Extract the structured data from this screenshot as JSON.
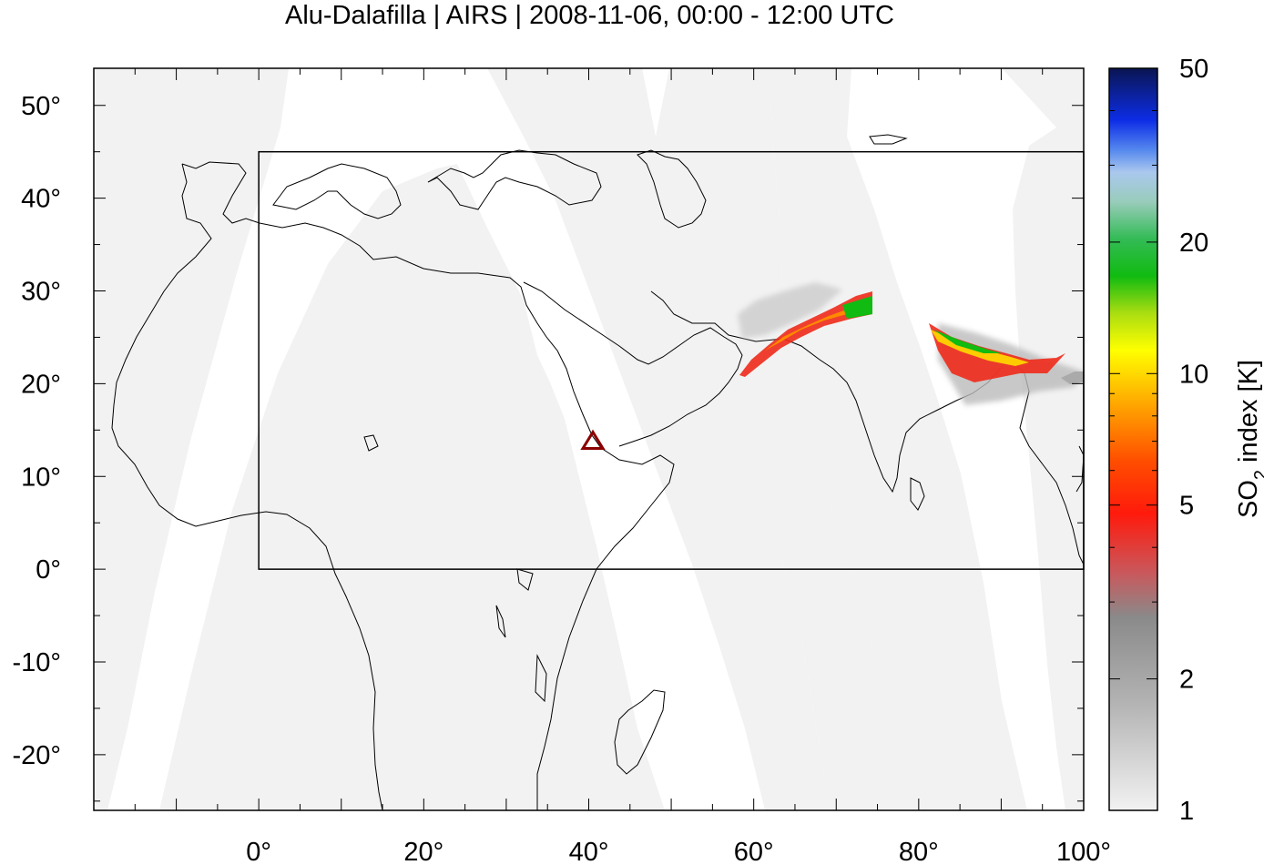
{
  "title": "Alu-Dalafilla | AIRS | 2008-11-06, 00:00 - 12:00 UTC",
  "colorbar": {
    "label_main": "SO",
    "label_sub": "2",
    "label_rest": " index [K]",
    "ticks": [
      "50",
      "20",
      "10",
      "5",
      "2",
      "1"
    ],
    "tick_values": [
      50,
      20,
      10,
      5,
      2,
      1
    ],
    "range": [
      1,
      50
    ],
    "scale": "log"
  },
  "chart_data": {
    "type": "heatmap",
    "title": "Alu-Dalafilla | AIRS | 2008-11-06, 00:00 - 12:00 UTC",
    "xlabel": "",
    "ylabel": "",
    "xlim": [
      -20,
      100
    ],
    "ylim": [
      -26,
      54
    ],
    "x_ticks": [
      "0°",
      "20°",
      "40°",
      "60°",
      "80°",
      "100°"
    ],
    "x_tick_values": [
      0,
      20,
      40,
      60,
      80,
      100
    ],
    "y_ticks": [
      "50°",
      "40°",
      "30°",
      "20°",
      "10°",
      "0°",
      "-10°",
      "-20°"
    ],
    "y_tick_values": [
      50,
      40,
      30,
      20,
      10,
      0,
      -10,
      -20
    ],
    "region_box": {
      "lon": [
        0,
        100
      ],
      "lat": [
        0,
        45
      ]
    },
    "volcano": {
      "name": "Alu-Dalafilla",
      "lon": 40.5,
      "lat": 13.8,
      "color": "#8b0000"
    },
    "swath_color": "#f2f2f2",
    "plume": [
      {
        "lon": 59,
        "lat": 21,
        "so2": 3
      },
      {
        "lon": 62,
        "lat": 24.5,
        "so2": 4
      },
      {
        "lon": 66,
        "lat": 27,
        "so2": 5
      },
      {
        "lon": 70,
        "lat": 28.5,
        "so2": 6
      },
      {
        "lon": 73,
        "lat": 29,
        "so2": 10
      },
      {
        "lon": 83,
        "lat": 25,
        "so2": 11
      },
      {
        "lon": 88,
        "lat": 23,
        "so2": 8
      },
      {
        "lon": 93,
        "lat": 22.3,
        "so2": 5
      }
    ]
  }
}
